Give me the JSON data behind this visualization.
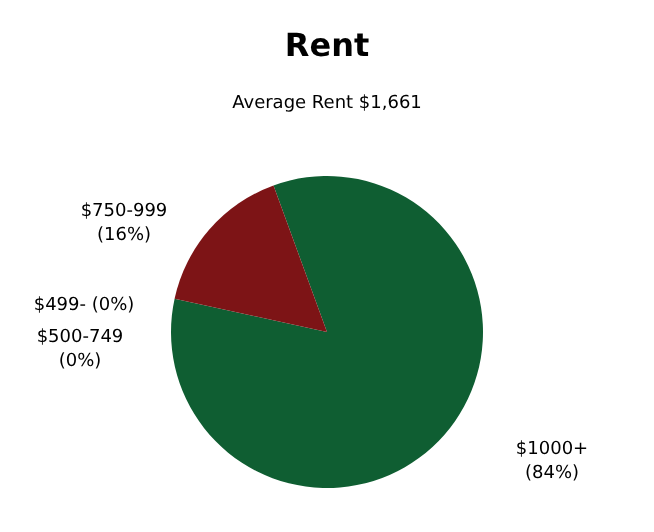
{
  "chart_data": {
    "type": "pie",
    "title": "Rent",
    "subtitle": "Average Rent  $1,661",
    "categories": [
      "$1000+",
      "$499-",
      "$500-749",
      "$750-999"
    ],
    "values": [
      84,
      0,
      0,
      16
    ],
    "value_labels": [
      "(84%)",
      "(0%)",
      "(0%)",
      "(16%)"
    ],
    "colors": [
      "#0f5e32",
      "#1f4e9a",
      "#c8a020",
      "#7d1416"
    ],
    "legend": false
  }
}
